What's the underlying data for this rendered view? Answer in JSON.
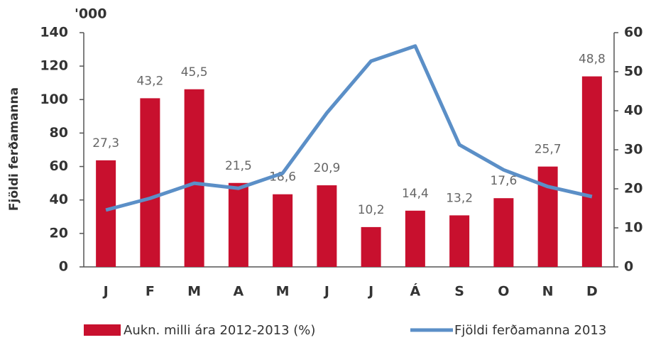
{
  "chart_data": {
    "type": "bar",
    "ylabel": "Fjöldi ferðamanna",
    "yunit": "'000",
    "categories": [
      "J",
      "F",
      "M",
      "A",
      "M",
      "J",
      "J",
      "Á",
      "S",
      "O",
      "N",
      "D"
    ],
    "series": [
      {
        "name": "Aukn. milli ára 2012-2013 (%)",
        "type": "bar",
        "axis": "y2",
        "color": "#c8102e",
        "values": [
          27.3,
          43.2,
          45.5,
          21.5,
          18.6,
          20.9,
          10.2,
          14.4,
          13.2,
          17.6,
          25.7,
          48.8
        ],
        "value_labels": [
          "27,3",
          "43,2",
          "45,5",
          "21,5",
          "18,6",
          "20,9",
          "10,2",
          "14,4",
          "13,2",
          "17,6",
          "25,7",
          "48,8"
        ]
      },
      {
        "name": "Fjöldi ferðamanna 2013",
        "type": "line",
        "axis": "y",
        "color": "#5b8fc7",
        "values": [
          34,
          41,
          50,
          47,
          56,
          92,
          123,
          132,
          73,
          58,
          48,
          42
        ]
      }
    ],
    "ylim": [
      0,
      140
    ],
    "yticks": [
      0,
      20,
      40,
      60,
      80,
      100,
      120,
      140
    ],
    "y2lim": [
      0,
      60
    ],
    "y2ticks": [
      0,
      10,
      20,
      30,
      40,
      50,
      60
    ],
    "legend": "bottom"
  }
}
